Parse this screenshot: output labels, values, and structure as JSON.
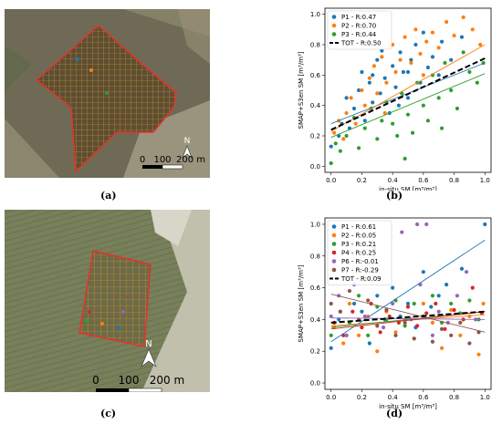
{
  "figure": {
    "labels": {
      "a": "(a)",
      "b": "(b)",
      "c": "(c)",
      "d": "(d)"
    }
  },
  "maps": [
    {
      "id": "a",
      "scalebar": {
        "ticks": [
          "0",
          "100",
          "200 m"
        ]
      },
      "north": "N",
      "colors": {
        "field_outline": "#e8302b",
        "grid": "#e0a020",
        "sat_bg": "#6f6a55"
      }
    },
    {
      "id": "c",
      "scalebar": {
        "ticks": [
          "0",
          "100",
          "200 m"
        ]
      },
      "north": "N",
      "colors": {
        "field_outline": "#e8302b",
        "grid": "#e0a020",
        "sat_bg": "#77805a"
      }
    }
  ],
  "chart_data": [
    {
      "id": "b",
      "type": "scatter",
      "xlabel": "in-situ SM [m³/m³]",
      "ylabel": "SMAP+S3en SM [m³/m³]",
      "xlim": [
        -0.04,
        1.04
      ],
      "ylim": [
        -0.04,
        1.04
      ],
      "xticks": [
        "0.0",
        "0.2",
        "0.4",
        "0.6",
        "0.8",
        "1.0"
      ],
      "yticks": [
        "0.0",
        "0.2",
        "0.4",
        "0.6",
        "0.8",
        "1.0"
      ],
      "legend_position": "top-left",
      "series": [
        {
          "name": "P1 - R:0.47",
          "color": "#1f77b4",
          "fit": [
            0.28,
            0.68
          ],
          "points": [
            [
              0.0,
              0.13
            ],
            [
              0.05,
              0.2
            ],
            [
              0.07,
              0.28
            ],
            [
              0.1,
              0.45
            ],
            [
              0.12,
              0.25
            ],
            [
              0.15,
              0.38
            ],
            [
              0.18,
              0.5
            ],
            [
              0.2,
              0.62
            ],
            [
              0.22,
              0.3
            ],
            [
              0.25,
              0.55
            ],
            [
              0.27,
              0.42
            ],
            [
              0.3,
              0.7
            ],
            [
              0.32,
              0.48
            ],
            [
              0.35,
              0.58
            ],
            [
              0.38,
              0.35
            ],
            [
              0.4,
              0.66
            ],
            [
              0.42,
              0.52
            ],
            [
              0.45,
              0.75
            ],
            [
              0.47,
              0.62
            ],
            [
              0.5,
              0.45
            ],
            [
              0.52,
              0.7
            ],
            [
              0.55,
              0.8
            ],
            [
              0.58,
              0.55
            ],
            [
              0.6,
              0.88
            ],
            [
              0.63,
              0.65
            ],
            [
              0.66,
              0.72
            ],
            [
              0.7,
              0.6
            ],
            [
              0.72,
              0.82
            ],
            [
              0.78,
              0.7
            ],
            [
              0.85,
              0.85
            ],
            [
              0.27,
              0.6
            ],
            [
              0.33,
              0.76
            ],
            [
              0.44,
              0.4
            ],
            [
              0.5,
              0.62
            ]
          ]
        },
        {
          "name": "P2 - R:0.70",
          "color": "#ff7f0e",
          "fit": [
            0.23,
            0.8
          ],
          "points": [
            [
              0.02,
              0.22
            ],
            [
              0.05,
              0.3
            ],
            [
              0.08,
              0.18
            ],
            [
              0.1,
              0.35
            ],
            [
              0.13,
              0.45
            ],
            [
              0.16,
              0.28
            ],
            [
              0.2,
              0.5
            ],
            [
              0.22,
              0.4
            ],
            [
              0.25,
              0.58
            ],
            [
              0.28,
              0.66
            ],
            [
              0.3,
              0.48
            ],
            [
              0.33,
              0.72
            ],
            [
              0.36,
              0.55
            ],
            [
              0.4,
              0.8
            ],
            [
              0.42,
              0.62
            ],
            [
              0.45,
              0.7
            ],
            [
              0.48,
              0.85
            ],
            [
              0.52,
              0.68
            ],
            [
              0.55,
              0.9
            ],
            [
              0.58,
              0.74
            ],
            [
              0.62,
              0.82
            ],
            [
              0.66,
              0.88
            ],
            [
              0.7,
              0.78
            ],
            [
              0.75,
              0.95
            ],
            [
              0.8,
              0.86
            ],
            [
              0.86,
              0.98
            ],
            [
              0.92,
              0.9
            ],
            [
              0.97,
              0.8
            ],
            [
              0.35,
              0.35
            ],
            [
              0.6,
              0.6
            ]
          ]
        },
        {
          "name": "P3 - R:0.44",
          "color": "#2ca02c",
          "fit": [
            0.19,
            0.61
          ],
          "points": [
            [
              0.0,
              0.02
            ],
            [
              0.03,
              0.15
            ],
            [
              0.06,
              0.1
            ],
            [
              0.1,
              0.2
            ],
            [
              0.15,
              0.32
            ],
            [
              0.18,
              0.12
            ],
            [
              0.22,
              0.25
            ],
            [
              0.26,
              0.38
            ],
            [
              0.3,
              0.18
            ],
            [
              0.33,
              0.3
            ],
            [
              0.36,
              0.42
            ],
            [
              0.4,
              0.28
            ],
            [
              0.43,
              0.2
            ],
            [
              0.46,
              0.48
            ],
            [
              0.5,
              0.34
            ],
            [
              0.53,
              0.22
            ],
            [
              0.56,
              0.55
            ],
            [
              0.6,
              0.4
            ],
            [
              0.63,
              0.3
            ],
            [
              0.66,
              0.6
            ],
            [
              0.7,
              0.45
            ],
            [
              0.74,
              0.68
            ],
            [
              0.78,
              0.5
            ],
            [
              0.82,
              0.38
            ],
            [
              0.86,
              0.75
            ],
            [
              0.9,
              0.62
            ],
            [
              0.95,
              0.55
            ],
            [
              0.99,
              0.68
            ],
            [
              0.48,
              0.05
            ],
            [
              0.72,
              0.25
            ]
          ]
        }
      ],
      "total": {
        "name": "TOT - R:0.50",
        "color": "#000000",
        "fit": [
          0.24,
          0.71
        ]
      }
    },
    {
      "id": "d",
      "type": "scatter",
      "xlabel": "in-situ SM [m³/m³]",
      "ylabel": "SMAP+S3en SM [m³/m³]",
      "xlim": [
        -0.04,
        1.04
      ],
      "ylim": [
        -0.04,
        1.04
      ],
      "xticks": [
        "0.0",
        "0.2",
        "0.4",
        "0.6",
        "0.8",
        "1.0"
      ],
      "yticks": [
        "0.0",
        "0.2",
        "0.4",
        "0.6",
        "0.8",
        "1.0"
      ],
      "legend_position": "top-left",
      "series": [
        {
          "name": "P1 - R:0.61",
          "color": "#1f77b4",
          "fit": [
            0.26,
            0.9
          ],
          "points": [
            [
              0.0,
              0.22
            ],
            [
              0.05,
              0.4
            ],
            [
              0.1,
              0.3
            ],
            [
              0.15,
              0.5
            ],
            [
              0.2,
              0.45
            ],
            [
              0.25,
              0.25
            ],
            [
              0.3,
              0.55
            ],
            [
              0.35,
              0.4
            ],
            [
              0.4,
              0.6
            ],
            [
              0.45,
              0.42
            ],
            [
              0.5,
              0.5
            ],
            [
              0.55,
              0.35
            ],
            [
              0.6,
              0.7
            ],
            [
              0.65,
              0.48
            ],
            [
              0.7,
              0.55
            ],
            [
              0.75,
              0.62
            ],
            [
              0.85,
              0.72
            ],
            [
              1.0,
              1.0
            ]
          ]
        },
        {
          "name": "P2 - R:0.05",
          "color": "#ff7f0e",
          "fit": [
            0.36,
            0.43
          ],
          "points": [
            [
              0.02,
              0.35
            ],
            [
              0.08,
              0.25
            ],
            [
              0.12,
              0.5
            ],
            [
              0.18,
              0.3
            ],
            [
              0.24,
              0.42
            ],
            [
              0.3,
              0.2
            ],
            [
              0.36,
              0.45
            ],
            [
              0.42,
              0.32
            ],
            [
              0.48,
              0.4
            ],
            [
              0.54,
              0.28
            ],
            [
              0.6,
              0.5
            ],
            [
              0.66,
              0.38
            ],
            [
              0.72,
              0.22
            ],
            [
              0.78,
              0.46
            ],
            [
              0.84,
              0.3
            ],
            [
              0.9,
              0.42
            ],
            [
              0.96,
              0.18
            ],
            [
              0.99,
              0.5
            ]
          ]
        },
        {
          "name": "P3 - R:0.21",
          "color": "#2ca02c",
          "fit": [
            0.35,
            0.45
          ],
          "points": [
            [
              0.0,
              0.3
            ],
            [
              0.06,
              0.45
            ],
            [
              0.12,
              0.38
            ],
            [
              0.18,
              0.55
            ],
            [
              0.24,
              0.3
            ],
            [
              0.3,
              0.48
            ],
            [
              0.36,
              0.4
            ],
            [
              0.42,
              0.52
            ],
            [
              0.48,
              0.36
            ],
            [
              0.54,
              0.5
            ],
            [
              0.6,
              0.42
            ],
            [
              0.66,
              0.55
            ],
            [
              0.72,
              0.38
            ],
            [
              0.78,
              0.5
            ],
            [
              0.84,
              0.44
            ],
            [
              0.9,
              0.52
            ],
            [
              0.96,
              0.4
            ]
          ]
        },
        {
          "name": "P4 - R:0.25",
          "color": "#d62728",
          "fit": [
            0.34,
            0.45
          ],
          "points": [
            [
              0.02,
              0.38
            ],
            [
              0.08,
              0.3
            ],
            [
              0.14,
              0.45
            ],
            [
              0.2,
              0.35
            ],
            [
              0.26,
              0.5
            ],
            [
              0.32,
              0.32
            ],
            [
              0.38,
              0.42
            ],
            [
              0.44,
              0.38
            ],
            [
              0.5,
              0.48
            ],
            [
              0.56,
              0.36
            ],
            [
              0.62,
              0.44
            ],
            [
              0.68,
              0.5
            ],
            [
              0.74,
              0.34
            ],
            [
              0.8,
              0.46
            ],
            [
              0.86,
              0.4
            ],
            [
              0.92,
              0.6
            ],
            [
              0.98,
              0.44
            ]
          ]
        },
        {
          "name": "P6 - R:-0.01",
          "color": "#9467bd",
          "fit": [
            0.41,
            0.4
          ],
          "points": [
            [
              0.0,
              0.42
            ],
            [
              0.05,
              0.55
            ],
            [
              0.1,
              0.3
            ],
            [
              0.15,
              0.62
            ],
            [
              0.22,
              0.42
            ],
            [
              0.28,
              0.85
            ],
            [
              0.34,
              0.35
            ],
            [
              0.4,
              0.5
            ],
            [
              0.46,
              0.95
            ],
            [
              0.52,
              0.4
            ],
            [
              0.58,
              0.62
            ],
            [
              0.62,
              1.0
            ],
            [
              0.66,
              0.3
            ],
            [
              0.7,
              0.45
            ],
            [
              0.76,
              0.38
            ],
            [
              0.82,
              0.55
            ],
            [
              0.88,
              0.7
            ],
            [
              0.94,
              0.4
            ],
            [
              0.56,
              1.0
            ]
          ]
        },
        {
          "name": "P7 - R:-0.29",
          "color": "#8c564b",
          "fit": [
            0.56,
            0.32
          ],
          "points": [
            [
              0.0,
              0.5
            ],
            [
              0.06,
              0.45
            ],
            [
              0.12,
              0.58
            ],
            [
              0.18,
              0.4
            ],
            [
              0.24,
              0.52
            ],
            [
              0.3,
              0.36
            ],
            [
              0.36,
              0.46
            ],
            [
              0.42,
              0.3
            ],
            [
              0.48,
              0.38
            ],
            [
              0.54,
              0.28
            ],
            [
              0.6,
              0.42
            ],
            [
              0.66,
              0.26
            ],
            [
              0.72,
              0.34
            ],
            [
              0.78,
              0.3
            ],
            [
              0.84,
              0.38
            ],
            [
              0.9,
              0.25
            ],
            [
              0.96,
              0.32
            ]
          ]
        }
      ],
      "total": {
        "name": "TOT - R:0.09",
        "color": "#000000",
        "fit": [
          0.38,
          0.45
        ]
      }
    }
  ]
}
